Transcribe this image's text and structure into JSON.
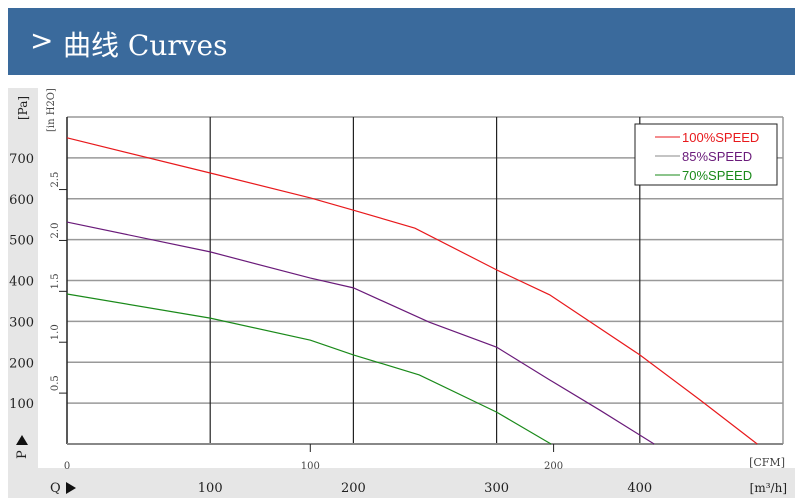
{
  "header": {
    "chevron": ">",
    "title": "曲线 Curves"
  },
  "chart_data": {
    "type": "line",
    "xlabel": "Q",
    "xunit": "[m³/h]",
    "x2unit": "[CFM]",
    "ylabel": "P",
    "yunit": "[Pa]",
    "y2unit": "[in H2O]",
    "xlim": [
      0,
      500
    ],
    "ylim": [
      0,
      800
    ],
    "xticks": [
      100,
      200,
      300,
      400
    ],
    "yticks": [
      100,
      200,
      300,
      400,
      500,
      600,
      700
    ],
    "x2ticks": [
      0,
      100,
      200
    ],
    "y2ticks": [
      "0.5",
      "1.0",
      "1.5",
      "2.0",
      "2.5"
    ],
    "grid": true,
    "legend": "top-right",
    "series": [
      {
        "name": "100%SPEED",
        "color": "#e8191c",
        "x": [
          0,
          100,
          170,
          200,
          243,
          300,
          337,
          400,
          442,
          482
        ],
        "y": [
          749,
          663,
          602,
          572,
          528,
          426,
          365,
          218,
          108,
          0
        ]
      },
      {
        "name": "85%SPEED",
        "color": "#6a1b7a",
        "x": [
          0,
          100,
          170,
          200,
          253,
          300,
          337,
          372,
          410
        ],
        "y": [
          543,
          470,
          406,
          382,
          298,
          237,
          157,
          83,
          0
        ]
      },
      {
        "name": "70%SPEED",
        "color": "#1a8a1a",
        "x": [
          0,
          100,
          170,
          200,
          246,
          300,
          338
        ],
        "y": [
          367,
          308,
          254,
          218,
          169,
          78,
          0
        ]
      }
    ]
  }
}
